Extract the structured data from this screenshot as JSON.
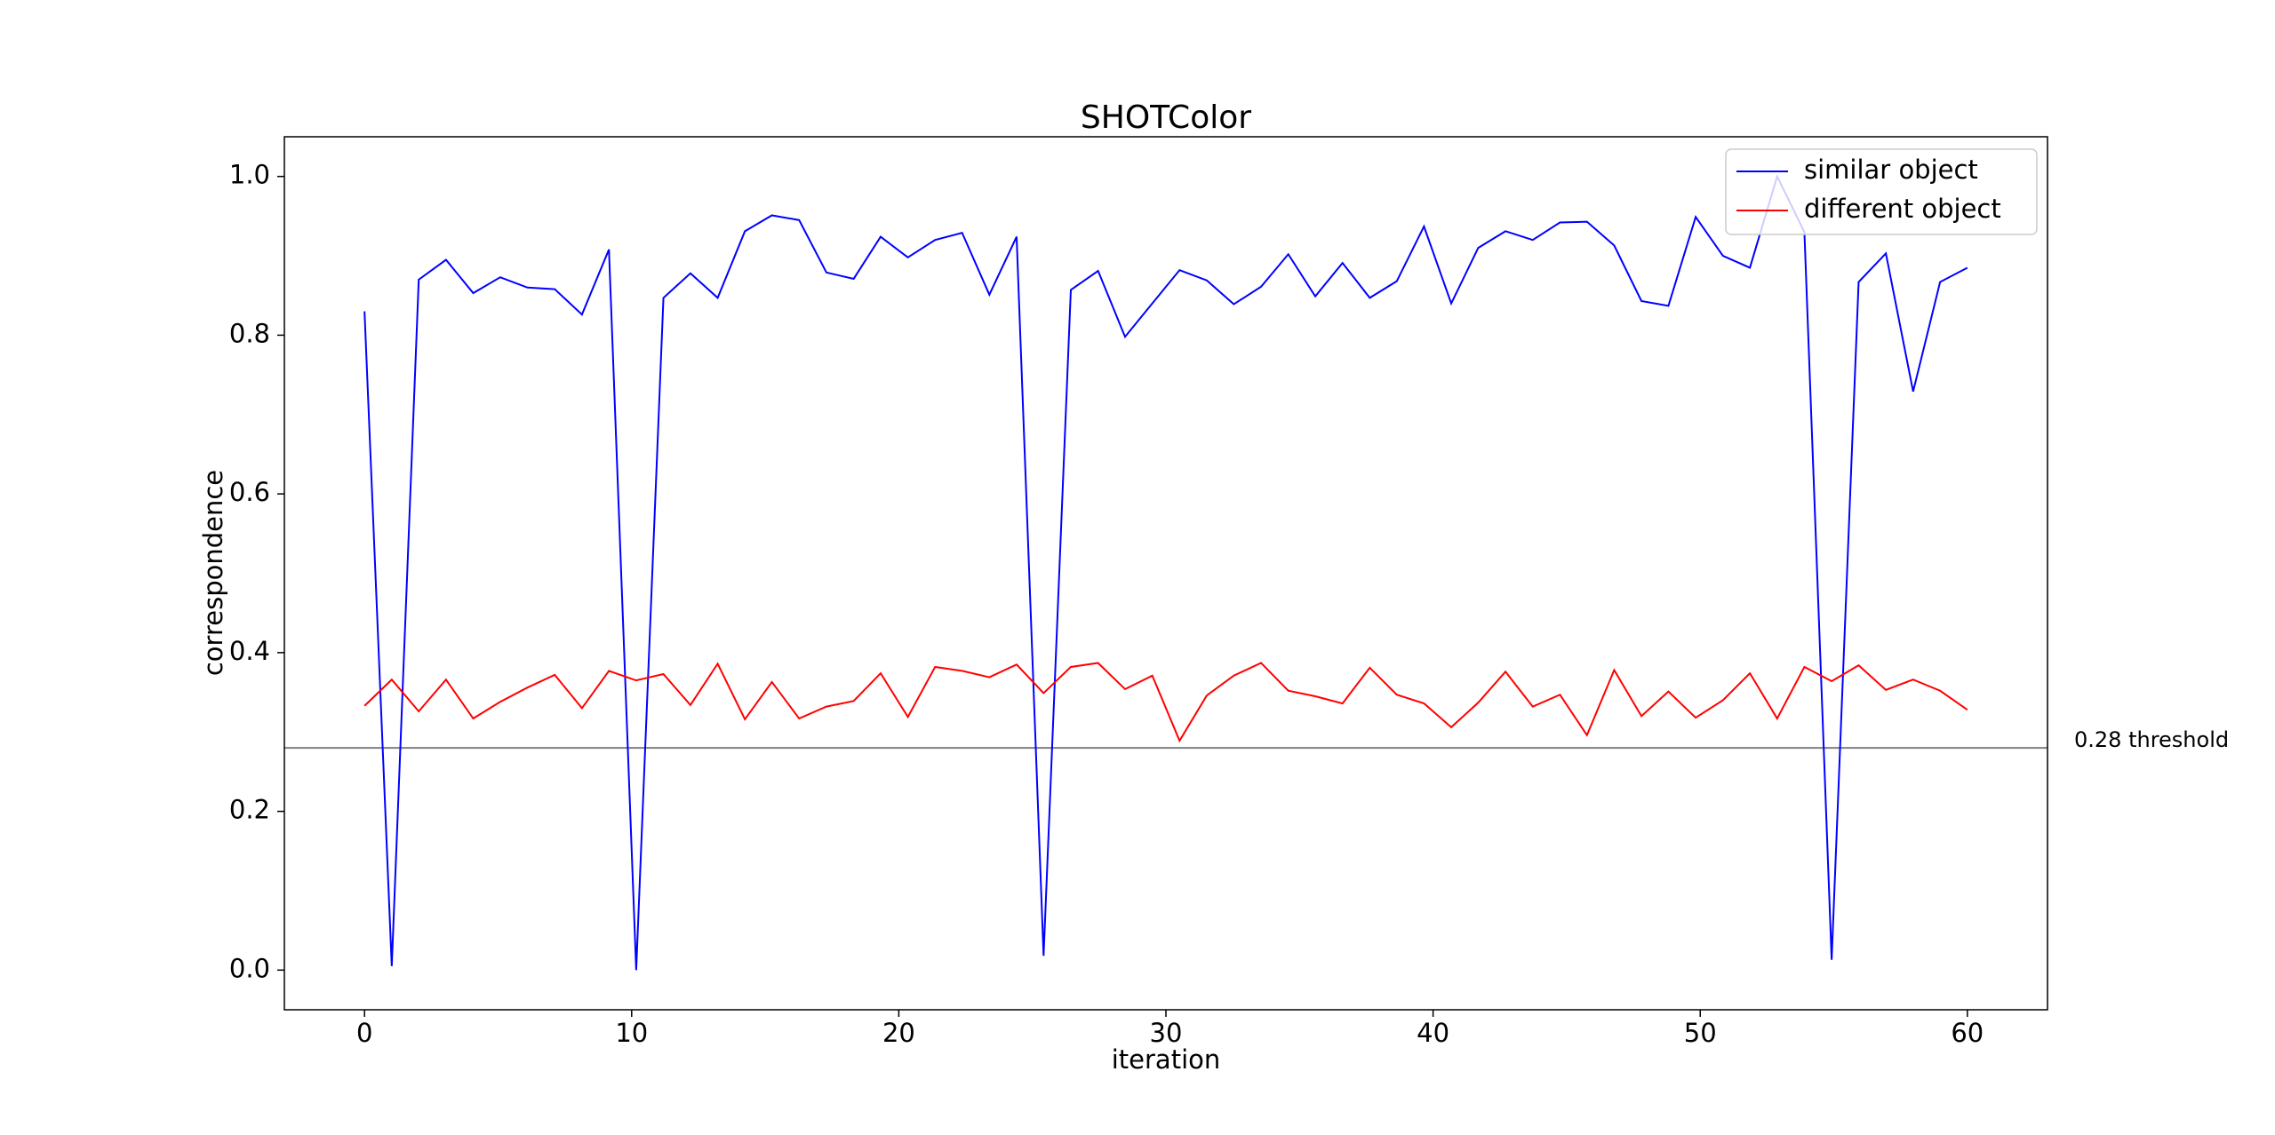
{
  "chart_data": {
    "type": "line",
    "title": "SHOTColor",
    "xlabel": "iteration",
    "ylabel": "correspondence",
    "x": [
      0,
      1.02,
      2.03,
      3.05,
      4.07,
      5.08,
      6.1,
      7.12,
      8.14,
      9.15,
      10.17,
      11.19,
      12.2,
      13.22,
      14.24,
      15.25,
      16.27,
      17.29,
      18.31,
      19.32,
      20.34,
      21.36,
      22.37,
      23.39,
      24.41,
      25.42,
      26.44,
      27.46,
      28.47,
      29.49,
      30.51,
      31.53,
      32.54,
      33.56,
      34.58,
      35.59,
      36.61,
      37.63,
      38.64,
      39.66,
      40.68,
      41.69,
      42.71,
      43.73,
      44.75,
      45.76,
      46.78,
      47.8,
      48.81,
      49.83,
      50.85,
      51.86,
      52.88,
      53.9,
      54.92,
      55.93,
      56.95,
      57.97,
      58.98,
      60
    ],
    "series": [
      {
        "name": "similar object",
        "color": "#0000ff",
        "values": [
          0.83,
          0.005,
          0.87,
          0.895,
          0.853,
          0.873,
          0.86,
          0.858,
          0.826,
          0.908,
          0.0,
          0.847,
          0.878,
          0.847,
          0.931,
          0.951,
          0.945,
          0.879,
          0.871,
          0.924,
          0.898,
          0.92,
          0.929,
          0.851,
          0.924,
          0.018,
          0.857,
          0.881,
          0.798,
          0.84,
          0.882,
          0.869,
          0.839,
          0.861,
          0.902,
          0.849,
          0.891,
          0.847,
          0.868,
          0.937,
          0.84,
          0.91,
          0.931,
          0.92,
          0.942,
          0.943,
          0.913,
          0.843,
          0.837,
          0.949,
          0.9,
          0.885,
          1.0,
          0.93,
          0.013,
          0.867,
          0.903,
          0.729,
          0.867,
          0.885
        ]
      },
      {
        "name": "different object",
        "color": "#ff0000",
        "values": [
          0.333,
          0.366,
          0.326,
          0.366,
          0.317,
          0.338,
          0.356,
          0.372,
          0.33,
          0.377,
          0.365,
          0.373,
          0.334,
          0.386,
          0.316,
          0.363,
          0.317,
          0.332,
          0.339,
          0.374,
          0.319,
          0.382,
          0.377,
          0.369,
          0.385,
          0.349,
          0.382,
          0.387,
          0.354,
          0.371,
          0.289,
          0.346,
          0.371,
          0.387,
          0.352,
          0.345,
          0.336,
          0.381,
          0.347,
          0.336,
          0.306,
          0.337,
          0.376,
          0.332,
          0.347,
          0.296,
          0.378,
          0.32,
          0.351,
          0.318,
          0.34,
          0.374,
          0.317,
          0.382,
          0.364,
          0.384,
          0.353,
          0.366,
          0.352,
          0.328
        ]
      }
    ],
    "threshold": {
      "value": 0.28,
      "label": "0.28 threshold",
      "color": "#808080"
    },
    "xlim": [
      -3,
      63
    ],
    "ylim": [
      -0.05,
      1.05
    ],
    "xticks": [
      0,
      10,
      20,
      30,
      40,
      50,
      60
    ],
    "yticks": [
      {
        "value": 0,
        "label": "0.0"
      },
      0.2,
      0.4,
      0.6,
      0.8,
      {
        "value": 1,
        "label": "1.0"
      }
    ],
    "legend": "upper right"
  }
}
